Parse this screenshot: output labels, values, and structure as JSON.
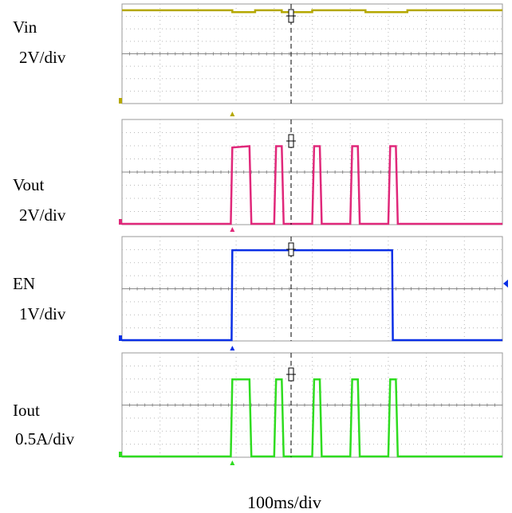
{
  "chart_data": [
    {
      "type": "line",
      "channel": "C1",
      "label": "Vin",
      "scale": "2V/div",
      "color": "#b5a800",
      "ylim": [
        0,
        8
      ],
      "points": [
        [
          0,
          7.55
        ],
        [
          2.9,
          7.55
        ],
        [
          2.9,
          7.4
        ],
        [
          3.5,
          7.4
        ],
        [
          3.5,
          7.55
        ],
        [
          4.2,
          7.55
        ],
        [
          4.2,
          7.4
        ],
        [
          5.0,
          7.4
        ],
        [
          5.0,
          7.55
        ],
        [
          6.4,
          7.55
        ],
        [
          6.4,
          7.4
        ],
        [
          7.5,
          7.4
        ],
        [
          7.5,
          7.55
        ],
        [
          10,
          7.55
        ]
      ],
      "ground_level": 0
    },
    {
      "type": "line",
      "channel": "C2",
      "label": "Vout",
      "scale": "2V/div",
      "color": "#e0287a",
      "ylim": [
        0,
        8
      ],
      "points": [
        [
          0,
          0
        ],
        [
          2.86,
          0
        ],
        [
          2.9,
          5.9
        ],
        [
          3.35,
          6.0
        ],
        [
          3.4,
          0
        ],
        [
          4.0,
          0
        ],
        [
          4.05,
          6.0
        ],
        [
          4.2,
          6.0
        ],
        [
          4.25,
          0
        ],
        [
          5.0,
          0
        ],
        [
          5.05,
          6.0
        ],
        [
          5.2,
          6.0
        ],
        [
          5.25,
          0
        ],
        [
          6.0,
          0
        ],
        [
          6.05,
          6.0
        ],
        [
          6.2,
          6.0
        ],
        [
          6.25,
          0
        ],
        [
          7.0,
          0
        ],
        [
          7.05,
          6.0
        ],
        [
          7.2,
          6.0
        ],
        [
          7.25,
          0
        ],
        [
          10,
          0
        ]
      ],
      "ground_level": 0
    },
    {
      "type": "line",
      "channel": "C3",
      "label": "EN",
      "scale": "1V/div",
      "color": "#0a2fe6",
      "ylim": [
        0,
        8
      ],
      "points": [
        [
          0,
          0
        ],
        [
          2.88,
          0
        ],
        [
          2.9,
          7.0
        ],
        [
          7.1,
          7.0
        ],
        [
          7.12,
          0
        ],
        [
          10,
          0
        ]
      ],
      "ground_level": 0
    },
    {
      "type": "line",
      "channel": "C4",
      "label": "Iout",
      "scale": "0.5A/div",
      "color": "#2fdc20",
      "ylim": [
        0,
        8
      ],
      "points": [
        [
          0,
          0
        ],
        [
          2.86,
          0
        ],
        [
          2.9,
          6.0
        ],
        [
          3.35,
          6.0
        ],
        [
          3.4,
          0
        ],
        [
          4.0,
          0
        ],
        [
          4.05,
          6.0
        ],
        [
          4.2,
          6.0
        ],
        [
          4.25,
          0
        ],
        [
          5.0,
          0
        ],
        [
          5.05,
          6.0
        ],
        [
          5.2,
          6.0
        ],
        [
          5.25,
          0
        ],
        [
          6.0,
          0
        ],
        [
          6.05,
          6.0
        ],
        [
          6.2,
          6.0
        ],
        [
          6.25,
          0
        ],
        [
          7.0,
          0
        ],
        [
          7.05,
          6.0
        ],
        [
          7.2,
          6.0
        ],
        [
          7.25,
          0
        ],
        [
          10,
          0
        ]
      ],
      "ground_level": 0
    }
  ],
  "labels": {
    "ch1_name": "Vin",
    "ch1_scale": "2V/div",
    "ch2_name": "Vout",
    "ch2_scale": "2V/div",
    "ch3_name": "EN",
    "ch3_scale": "1V/div",
    "ch4_name": "Iout",
    "ch4_scale": "0.5A/div",
    "timebase": "100ms/div"
  },
  "grid": {
    "divisions_x": 10,
    "divisions_y": 8,
    "dotted": true
  }
}
